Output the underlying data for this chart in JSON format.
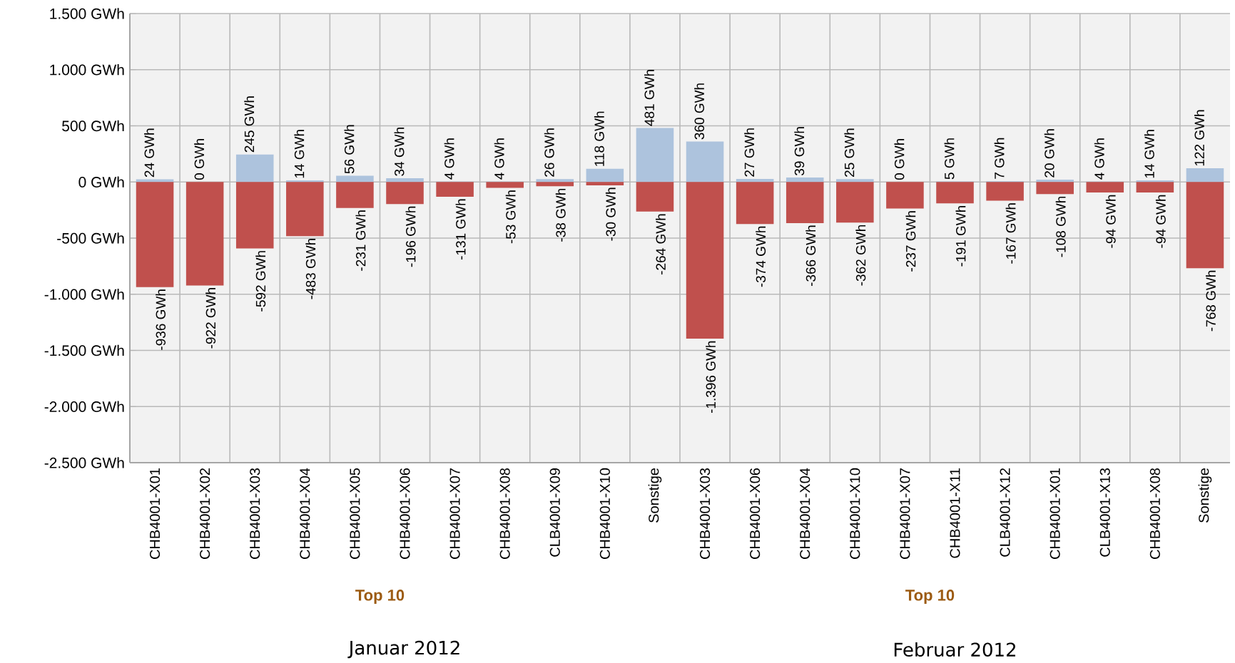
{
  "chart_data": {
    "type": "bar",
    "stacked": true,
    "categories": [
      "CHB4001-X01",
      "CHB4001-X02",
      "CHB4001-X03",
      "CHB4001-X04",
      "CHB4001-X05",
      "CHB4001-X06",
      "CHB4001-X07",
      "CHB4001-X08",
      "CLB4001-X09",
      "CHB4001-X10",
      "Sonstige",
      "CHB4001-X03",
      "CHB4001-X06",
      "CHB4001-X04",
      "CHB4001-X10",
      "CHB4001-X07",
      "CHB4001-X11",
      "CLB4001-X12",
      "CHB4001-X01",
      "CLB4001-X13",
      "CHB4001-X08",
      "Sonstige"
    ],
    "series": [
      {
        "color": "#adc3dd",
        "values": [
          24,
          0,
          245,
          14,
          56,
          34,
          4,
          4,
          26,
          118,
          481,
          360,
          27,
          39,
          25,
          0,
          5,
          7,
          20,
          4,
          14,
          122
        ],
        "value_labels": [
          "24 GWh",
          "0 GWh",
          "245 GWh",
          "14 GWh",
          "56 GWh",
          "34 GWh",
          "4 GWh",
          "4 GWh",
          "26 GWh",
          "118 GWh",
          "481 GWh",
          "360 GWh",
          "27 GWh",
          "39 GWh",
          "25 GWh",
          "0 GWh",
          "5 GWh",
          "7 GWh",
          "20 GWh",
          "4 GWh",
          "14 GWh",
          "122 GWh"
        ]
      },
      {
        "color": "#c0504d",
        "values": [
          -936,
          -922,
          -592,
          -483,
          -231,
          -196,
          -131,
          -53,
          -38,
          -30,
          -264,
          -1396,
          -374,
          -366,
          -362,
          -237,
          -191,
          -167,
          -108,
          -94,
          -94,
          -768
        ],
        "value_labels": [
          "-936 GWh",
          "-922 GWh",
          "-592 GWh",
          "-483 GWh",
          "-231 GWh",
          "-196 GWh",
          "-131 GWh",
          "-53 GWh",
          "-38 GWh",
          "-30 GWh",
          "-264 GWh",
          "-1.396 GWh",
          "-374 GWh",
          "-366 GWh",
          "-362 GWh",
          "-237 GWh",
          "-191 GWh",
          "-167 GWh",
          "-108 GWh",
          "-94 GWh",
          "-94 GWh",
          "-768 GWh"
        ]
      }
    ],
    "ylim": [
      -2500,
      1500
    ],
    "yticks": [
      {
        "value": -2500,
        "label": "-2.500 GWh"
      },
      {
        "value": -2000,
        "label": "-2.000 GWh"
      },
      {
        "value": -1500,
        "label": "-1.500 GWh"
      },
      {
        "value": -1000,
        "label": "-1.000 GWh"
      },
      {
        "value": -500,
        "label": "-500 GWh"
      },
      {
        "value": 0,
        "label": "0 GWh"
      },
      {
        "value": 500,
        "label": "500 GWh"
      },
      {
        "value": 1000,
        "label": "1.000 GWh"
      },
      {
        "value": 1500,
        "label": "1.500 GWh"
      }
    ],
    "grid": true,
    "annotations": [
      "Top 10",
      "Top 10",
      "Januar 2012",
      "Februar 2012"
    ]
  }
}
